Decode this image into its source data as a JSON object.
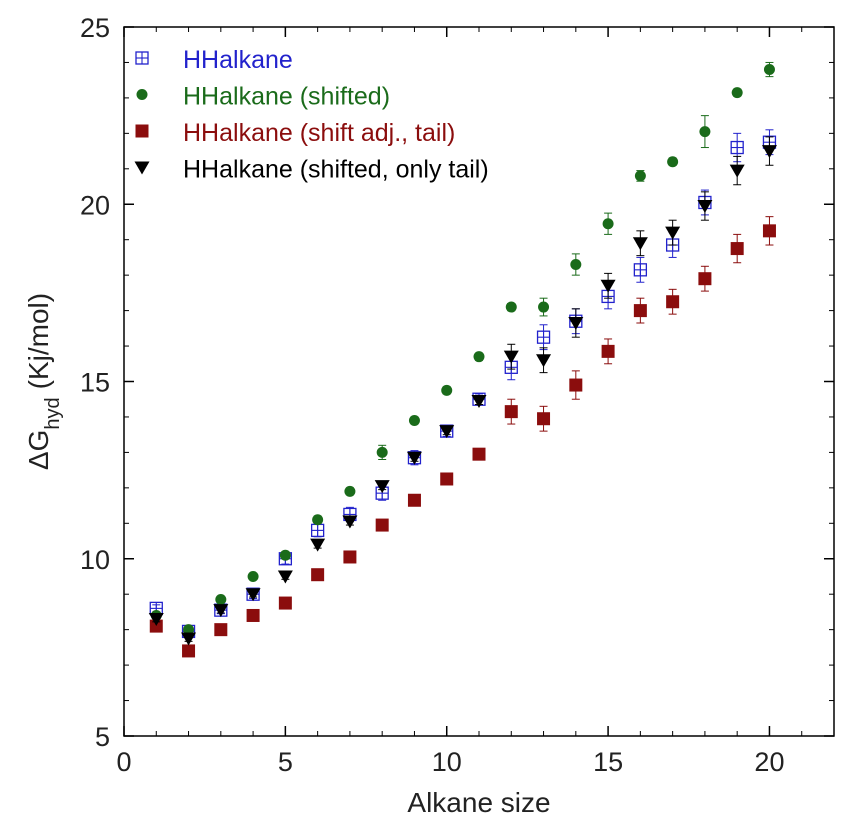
{
  "chart_data": {
    "type": "scatter",
    "title": "",
    "xlabel": "Alkane size",
    "ylabel_main": "ΔG",
    "ylabel_sub": "hyd",
    "ylabel_unit": "(Kj/mol)",
    "xlim": [
      0,
      22
    ],
    "ylim": [
      5,
      25
    ],
    "xticks": [
      0,
      5,
      10,
      15,
      20
    ],
    "yticks": [
      5,
      10,
      15,
      20,
      25
    ],
    "grid": false,
    "legend_position": "top-left",
    "series": [
      {
        "name": "HHalkane",
        "marker": "square-plus-open",
        "color": "#2222cc",
        "x": [
          1,
          2,
          3,
          4,
          5,
          6,
          7,
          8,
          9,
          10,
          11,
          12,
          13,
          14,
          15,
          16,
          17,
          18,
          19,
          20
        ],
        "y": [
          8.6,
          7.95,
          8.55,
          9.0,
          10.0,
          10.8,
          11.25,
          11.85,
          12.85,
          13.6,
          14.5,
          15.4,
          16.25,
          16.7,
          17.4,
          18.15,
          18.85,
          20.05,
          21.6,
          21.75
        ],
        "err": [
          0.1,
          0.08,
          0.1,
          0.12,
          0.15,
          0.18,
          0.2,
          0.2,
          0.2,
          0.15,
          0.15,
          0.35,
          0.35,
          0.35,
          0.35,
          0.35,
          0.35,
          0.35,
          0.4,
          0.35
        ]
      },
      {
        "name": "HHalkane (shifted)",
        "marker": "circle",
        "color": "#1a6b1a",
        "x": [
          1,
          2,
          3,
          4,
          5,
          6,
          7,
          8,
          9,
          10,
          11,
          12,
          13,
          14,
          15,
          16,
          17,
          18,
          19,
          20
        ],
        "y": [
          8.4,
          8.0,
          8.85,
          9.5,
          10.1,
          11.1,
          11.9,
          13.0,
          13.9,
          14.75,
          15.7,
          17.1,
          17.1,
          18.3,
          19.45,
          20.8,
          21.2,
          22.05,
          23.15,
          23.8
        ],
        "err": [
          0.08,
          0.08,
          0.08,
          0.08,
          0.1,
          0.1,
          0.1,
          0.2,
          0.1,
          0.1,
          0.1,
          0.1,
          0.25,
          0.3,
          0.3,
          0.15,
          0.1,
          0.45,
          0.1,
          0.2
        ]
      },
      {
        "name": "HHalkane (shift adj., tail)",
        "marker": "square",
        "color": "#8b0d0d",
        "x": [
          1,
          2,
          3,
          4,
          5,
          6,
          7,
          8,
          9,
          10,
          11,
          12,
          13,
          14,
          15,
          16,
          17,
          18,
          19,
          20
        ],
        "y": [
          8.1,
          7.4,
          8.0,
          8.4,
          8.75,
          9.55,
          10.05,
          10.95,
          11.65,
          12.25,
          12.95,
          14.15,
          13.95,
          14.9,
          15.85,
          17.0,
          17.25,
          17.9,
          18.75,
          19.25
        ],
        "err": [
          0.08,
          0.1,
          0.1,
          0.1,
          0.1,
          0.1,
          0.1,
          0.1,
          0.1,
          0.1,
          0.1,
          0.35,
          0.35,
          0.4,
          0.35,
          0.35,
          0.35,
          0.35,
          0.4,
          0.4
        ]
      },
      {
        "name": "HHalkane (shifted, only tail)",
        "marker": "triangle-down",
        "color": "#000000",
        "x": [
          1,
          2,
          3,
          4,
          5,
          6,
          7,
          8,
          9,
          10,
          11,
          12,
          13,
          14,
          15,
          16,
          17,
          18,
          19,
          20
        ],
        "y": [
          8.3,
          7.75,
          8.55,
          9.0,
          9.5,
          10.4,
          11.05,
          12.05,
          12.85,
          13.6,
          14.45,
          15.7,
          15.6,
          16.65,
          17.7,
          18.9,
          19.2,
          19.95,
          20.95,
          21.5
        ],
        "err": [
          0.08,
          0.08,
          0.08,
          0.08,
          0.08,
          0.1,
          0.1,
          0.1,
          0.1,
          0.1,
          0.1,
          0.35,
          0.35,
          0.4,
          0.35,
          0.35,
          0.35,
          0.4,
          0.4,
          0.4
        ]
      }
    ]
  }
}
